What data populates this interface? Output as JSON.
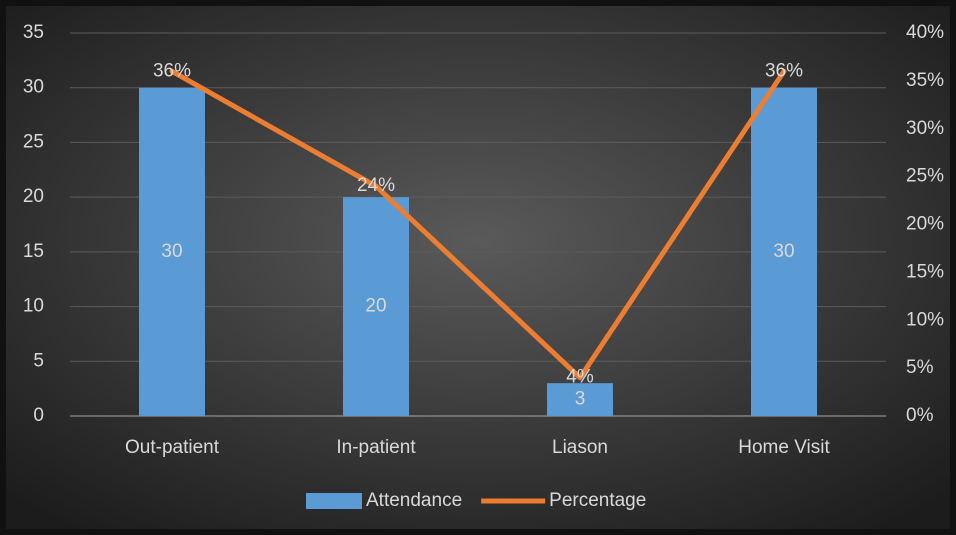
{
  "chart_data": {
    "type": "bar",
    "categories": [
      "Out-patient",
      "In-patient",
      "Liason",
      "Home Visit"
    ],
    "series": [
      {
        "name": "Attendance",
        "type": "bar",
        "color": "#5b9bd5",
        "values": [
          30,
          20,
          3,
          30
        ]
      },
      {
        "name": "Percentage",
        "type": "line",
        "axis": "y2",
        "color": "#ed7d31",
        "values": [
          36,
          24,
          4,
          36
        ],
        "value_labels": [
          "36%",
          "24%",
          "4%",
          "36%"
        ]
      }
    ],
    "ylim": [
      0,
      35
    ],
    "yticks": [
      0,
      5,
      10,
      15,
      20,
      25,
      30,
      35
    ],
    "y2lim": [
      0,
      40
    ],
    "y2ticks": [
      {
        "value": 0,
        "label": "0%"
      },
      {
        "value": 5,
        "label": "5%"
      },
      {
        "value": 10,
        "label": "10%"
      },
      {
        "value": 15,
        "label": "15%"
      },
      {
        "value": 20,
        "label": "20%"
      },
      {
        "value": 25,
        "label": "25%"
      },
      {
        "value": 30,
        "label": "30%"
      },
      {
        "value": 35,
        "label": "35%"
      },
      {
        "value": 40,
        "label": "40%"
      }
    ],
    "grid": true,
    "legend": "bottom"
  }
}
